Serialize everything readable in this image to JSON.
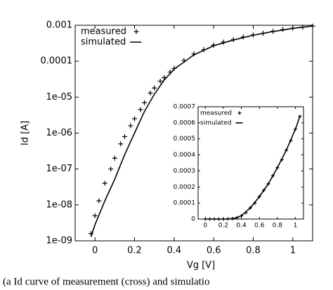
{
  "chart_data": [
    {
      "type": "line",
      "log_scale": "y",
      "legend": "upper left",
      "xlabel": "Vg [V]",
      "ylabel": "Id [A]",
      "xlim": [
        -0.1,
        1.1
      ],
      "xticks": [
        0,
        0.2,
        0.4,
        0.6,
        0.8,
        1
      ],
      "ylim": [
        1e-09,
        0.001
      ],
      "yticks": [
        {
          "value": 1e-09,
          "label": "1e-09"
        },
        {
          "value": 1e-08,
          "label": "1e-08"
        },
        {
          "value": 1e-07,
          "label": "1e-07"
        },
        {
          "value": 1e-06,
          "label": "1e-06"
        },
        {
          "value": 1e-05,
          "label": "1e-05"
        },
        0.0001,
        0.001
      ],
      "series": [
        {
          "name": "measured",
          "style": "cross",
          "color": "#000000",
          "x": [
            -0.02,
            0,
            0.02,
            0.05,
            0.08,
            0.1,
            0.13,
            0.15,
            0.18,
            0.2,
            0.23,
            0.25,
            0.28,
            0.3,
            0.33,
            0.35,
            0.38,
            0.4,
            0.45,
            0.5,
            0.55,
            0.6,
            0.65,
            0.7,
            0.75,
            0.8,
            0.85,
            0.9,
            0.95,
            1.0,
            1.05,
            1.1
          ],
          "values": [
            1.6e-09,
            5e-09,
            1.3e-08,
            4e-08,
            1e-07,
            2e-07,
            5e-07,
            8e-07,
            1.6e-06,
            2.5e-06,
            4.5e-06,
            7e-06,
            1.3e-05,
            1.8e-05,
            2.8e-05,
            3.5e-05,
            5e-05,
            6.3e-05,
            0.000105,
            0.00016,
            0.00021,
            0.00028,
            0.00034,
            0.0004,
            0.00047,
            0.00054,
            0.0006,
            0.00068,
            0.00076,
            0.00083,
            0.00089,
            0.00095
          ]
        },
        {
          "name": "simulated",
          "style": "line",
          "color": "#000000",
          "x": [
            -0.02,
            0,
            0.05,
            0.1,
            0.15,
            0.2,
            0.25,
            0.3,
            0.35,
            0.4,
            0.5,
            0.6,
            0.7,
            0.8,
            0.9,
            1.0,
            1.1
          ],
          "values": [
            1.3e-09,
            2.8e-09,
            1.3e-08,
            5.2e-08,
            2.5e-07,
            1e-06,
            4e-06,
            1.2e-05,
            3e-05,
            6e-05,
            0.00015,
            0.00027,
            0.00039,
            0.00053,
            0.00067,
            0.00082,
            0.00096
          ]
        }
      ]
    },
    {
      "type": "line",
      "legend": "upper left",
      "xlim": [
        -0.08,
        1.09
      ],
      "xticks": [
        0,
        0.2,
        0.4,
        0.6,
        0.8,
        1
      ],
      "ylim": [
        0,
        0.0007
      ],
      "yticks": [
        0,
        0.0001,
        0.0002,
        0.0003,
        0.0004,
        0.0005,
        0.0006,
        0.0007
      ],
      "series": [
        {
          "name": "measured",
          "style": "cross",
          "color": "#000000",
          "x": [
            0,
            0.05,
            0.1,
            0.15,
            0.2,
            0.25,
            0.3,
            0.35,
            0.4,
            0.45,
            0.5,
            0.55,
            0.6,
            0.65,
            0.7,
            0.75,
            0.8,
            0.85,
            0.9,
            0.95,
            1.0,
            1.05
          ],
          "values": [
            0,
            0,
            0,
            0,
            0,
            1e-06,
            3e-06,
            8e-06,
            2e-05,
            4e-05,
            7e-05,
            0.0001,
            0.00014,
            0.00018,
            0.00022,
            0.00027,
            0.00032,
            0.00037,
            0.00043,
            0.00049,
            0.00056,
            0.00064
          ]
        },
        {
          "name": "simulated",
          "style": "line",
          "color": "#000000",
          "x": [
            0,
            0.1,
            0.2,
            0.25,
            0.3,
            0.35,
            0.4,
            0.5,
            0.6,
            0.7,
            0.8,
            0.9,
            1.0,
            1.05
          ],
          "values": [
            0,
            0,
            0,
            1e-06,
            3e-06,
            9e-06,
            2.1e-05,
            7e-05,
            0.00014,
            0.00022,
            0.00032,
            0.00043,
            0.00056,
            0.00064
          ]
        }
      ]
    }
  ],
  "caption": "(a Id curve of measurement (cross) and simulatio"
}
